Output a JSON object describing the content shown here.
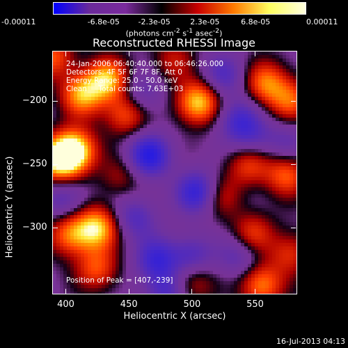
{
  "colorbar": {
    "ticks": [
      "-0.00011",
      "-6.8e-05",
      "-2.3e-05",
      "2.3e-05",
      "6.8e-05",
      "0.00011"
    ],
    "units_prefix": "(photons cm",
    "units_exp1": "-2",
    "units_mid": " s",
    "units_exp2": "-1",
    "units_mid2": " asec",
    "units_exp3": "-2",
    "units_suffix": ")",
    "colors": [
      "#0000ff",
      "#6a2a9a",
      "#7a2a9c",
      "#000000",
      "#c80000",
      "#ff7a00",
      "#ffff60",
      "#ffffe0"
    ]
  },
  "chart_data": {
    "type": "heatmap",
    "title": "Reconstructed RHESSI Image",
    "xlabel": "Heliocentric X (arcsec)",
    "ylabel": "Heliocentric Y (arcsec)",
    "xlim": [
      390,
      583
    ],
    "ylim": [
      -352,
      -161
    ],
    "xticks": [
      400,
      450,
      500,
      550
    ],
    "yticks": [
      -200,
      -250,
      -300
    ],
    "peak": [
      407,
      -239
    ],
    "info_lines": [
      "24-Jan-2006 06:40:40.000 to 06:46:26.000",
      "Detectors: 4F 5F 6F 7F 8F, Att 0",
      "Energy Range: 25.0 - 50.0 keV",
      "Clean     Total counts: 7.63E+03"
    ],
    "peak_label": "Position of Peak = [407,-239]",
    "sources": [
      {
        "x": 407,
        "y": -239,
        "v": 1.0
      },
      {
        "x": 395,
        "y": -247,
        "v": 0.9
      },
      {
        "x": 413,
        "y": -195,
        "v": 0.75
      },
      {
        "x": 433,
        "y": -183,
        "v": 0.8
      },
      {
        "x": 505,
        "y": -201,
        "v": 0.9
      },
      {
        "x": 448,
        "y": -210,
        "v": 0.6
      },
      {
        "x": 559,
        "y": -186,
        "v": 0.65
      },
      {
        "x": 578,
        "y": -200,
        "v": 0.55
      },
      {
        "x": 545,
        "y": -250,
        "v": 0.5
      },
      {
        "x": 575,
        "y": -258,
        "v": 0.6
      },
      {
        "x": 522,
        "y": -275,
        "v": 0.4
      },
      {
        "x": 404,
        "y": -305,
        "v": 0.65
      },
      {
        "x": 425,
        "y": -300,
        "v": 0.85
      },
      {
        "x": 425,
        "y": -332,
        "v": 0.55
      },
      {
        "x": 500,
        "y": -342,
        "v": 0.45
      },
      {
        "x": 555,
        "y": -345,
        "v": 0.7
      },
      {
        "x": 548,
        "y": -305,
        "v": 0.5
      },
      {
        "x": 578,
        "y": -320,
        "v": 0.45
      },
      {
        "x": 485,
        "y": -168,
        "v": 0.35
      },
      {
        "x": 390,
        "y": -165,
        "v": 0.55
      },
      {
        "x": 444,
        "y": -260,
        "v": 0.3
      },
      {
        "x": 466,
        "y": -243,
        "v": -0.8
      },
      {
        "x": 505,
        "y": -272,
        "v": -0.75
      },
      {
        "x": 472,
        "y": -325,
        "v": -0.6
      },
      {
        "x": 500,
        "y": -323,
        "v": -0.5
      },
      {
        "x": 537,
        "y": -215,
        "v": -0.5
      },
      {
        "x": 460,
        "y": -195,
        "v": -0.4
      },
      {
        "x": 525,
        "y": -180,
        "v": -0.45
      },
      {
        "x": 400,
        "y": -278,
        "v": -0.4
      },
      {
        "x": 548,
        "y": -230,
        "v": -0.35
      },
      {
        "x": 455,
        "y": -292,
        "v": -0.45
      },
      {
        "x": 538,
        "y": -322,
        "v": -0.4
      },
      {
        "x": 480,
        "y": -350,
        "v": -0.5
      },
      {
        "x": 575,
        "y": -232,
        "v": -0.3
      }
    ]
  },
  "footer": {
    "date": "16-Jul-2013 04:13"
  }
}
